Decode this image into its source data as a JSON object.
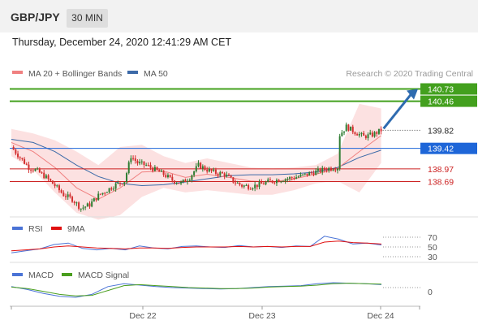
{
  "header": {
    "pair": "GBP/JPY",
    "timeframe": "30 MIN",
    "datetime": "Thursday, December 24, 2020 12:41:29 AM CET"
  },
  "legend": {
    "ma20": "MA 20 + Bollinger Bands",
    "ma50": "MA 50",
    "credit": "Research © 2020 Trading Central",
    "rsi": "RSI",
    "nine_ma": "9MA",
    "macd": "MACD",
    "macd_signal": "MACD Signal"
  },
  "colors": {
    "candle_up": "#2e7d32",
    "candle_down": "#d32f2f",
    "ma20": "#f08080",
    "ma50": "#3c6aa8",
    "bollinger_fill": "#fcdcdc",
    "resistance": "#43a01e",
    "pivot": "#1e66d8",
    "support": "#cc2222",
    "arrow": "#2e6bb0",
    "rsi": "#4a73d6",
    "nine_ma": "#e01010",
    "macd": "#4a73d6",
    "macd_signal": "#4a9e1e"
  },
  "chart_data": [
    {
      "type": "candlestick",
      "timeframe_minutes": 30,
      "x_ticks": [
        "Dec 22",
        "Dec 23",
        "Dec 24"
      ],
      "ylim": [
        138.0,
        140.9
      ],
      "last_price": 139.82,
      "levels": [
        {
          "value": 140.73,
          "kind": "resistance",
          "label": "140.73"
        },
        {
          "value": 140.46,
          "kind": "resistance",
          "label": "140.46"
        },
        {
          "value": 139.42,
          "kind": "pivot",
          "label": "139.42"
        },
        {
          "value": 138.97,
          "kind": "support",
          "label": "138.97"
        },
        {
          "value": 138.69,
          "kind": "support",
          "label": "138.69"
        }
      ],
      "close_path": [
        [
          0,
          139.45
        ],
        [
          4,
          139.22
        ],
        [
          8,
          139.0
        ],
        [
          12,
          138.92
        ],
        [
          16,
          138.78
        ],
        [
          20,
          138.6
        ],
        [
          24,
          138.4
        ],
        [
          28,
          138.3
        ],
        [
          32,
          138.1
        ],
        [
          36,
          138.18
        ],
        [
          40,
          138.38
        ],
        [
          44,
          138.5
        ],
        [
          48,
          138.62
        ],
        [
          52,
          138.7
        ],
        [
          55,
          139.25
        ],
        [
          58,
          139.1
        ],
        [
          62,
          139.05
        ],
        [
          66,
          138.95
        ],
        [
          70,
          138.85
        ],
        [
          74,
          138.72
        ],
        [
          78,
          138.65
        ],
        [
          82,
          138.78
        ],
        [
          86,
          139.05
        ],
        [
          90,
          138.95
        ],
        [
          94,
          138.88
        ],
        [
          98,
          138.85
        ],
        [
          102,
          138.7
        ],
        [
          106,
          138.6
        ],
        [
          110,
          138.58
        ],
        [
          114,
          138.62
        ],
        [
          118,
          138.68
        ],
        [
          122,
          138.72
        ],
        [
          126,
          138.75
        ],
        [
          130,
          138.78
        ],
        [
          134,
          138.82
        ],
        [
          138,
          138.88
        ],
        [
          142,
          138.93
        ],
        [
          146,
          138.98
        ],
        [
          150,
          139.0
        ],
        [
          151,
          139.72
        ],
        [
          154,
          139.9
        ],
        [
          158,
          139.78
        ],
        [
          162,
          139.68
        ],
        [
          166,
          139.72
        ],
        [
          170,
          139.82
        ]
      ],
      "ma20": [
        [
          0,
          139.55
        ],
        [
          10,
          139.35
        ],
        [
          20,
          139.0
        ],
        [
          30,
          138.55
        ],
        [
          40,
          138.3
        ],
        [
          50,
          138.55
        ],
        [
          60,
          138.9
        ],
        [
          70,
          138.92
        ],
        [
          80,
          138.78
        ],
        [
          90,
          138.85
        ],
        [
          100,
          138.78
        ],
        [
          110,
          138.7
        ],
        [
          120,
          138.68
        ],
        [
          130,
          138.75
        ],
        [
          140,
          138.85
        ],
        [
          150,
          138.98
        ],
        [
          160,
          139.35
        ],
        [
          170,
          139.7
        ]
      ],
      "ma50": [
        [
          0,
          139.62
        ],
        [
          10,
          139.55
        ],
        [
          20,
          139.35
        ],
        [
          30,
          139.05
        ],
        [
          40,
          138.8
        ],
        [
          50,
          138.65
        ],
        [
          60,
          138.6
        ],
        [
          70,
          138.62
        ],
        [
          80,
          138.68
        ],
        [
          90,
          138.75
        ],
        [
          100,
          138.82
        ],
        [
          110,
          138.84
        ],
        [
          120,
          138.84
        ],
        [
          130,
          138.86
        ],
        [
          140,
          138.9
        ],
        [
          150,
          139.0
        ],
        [
          160,
          139.22
        ],
        [
          170,
          139.38
        ]
      ],
      "bollinger_upper": [
        [
          0,
          139.85
        ],
        [
          10,
          139.75
        ],
        [
          20,
          139.6
        ],
        [
          30,
          139.35
        ],
        [
          40,
          139.05
        ],
        [
          50,
          139.45
        ],
        [
          60,
          139.5
        ],
        [
          70,
          139.25
        ],
        [
          80,
          139.1
        ],
        [
          90,
          139.2
        ],
        [
          100,
          139.1
        ],
        [
          110,
          139.0
        ],
        [
          120,
          138.98
        ],
        [
          130,
          139.0
        ],
        [
          140,
          139.05
        ],
        [
          150,
          139.3
        ],
        [
          160,
          140.4
        ],
        [
          170,
          140.3
        ]
      ],
      "bollinger_lower": [
        [
          0,
          139.25
        ],
        [
          10,
          138.95
        ],
        [
          20,
          138.45
        ],
        [
          30,
          138.0
        ],
        [
          40,
          137.85
        ],
        [
          50,
          137.95
        ],
        [
          60,
          138.35
        ],
        [
          70,
          138.55
        ],
        [
          80,
          138.45
        ],
        [
          90,
          138.5
        ],
        [
          100,
          138.45
        ],
        [
          110,
          138.4
        ],
        [
          120,
          138.4
        ],
        [
          130,
          138.5
        ],
        [
          140,
          138.65
        ],
        [
          150,
          138.7
        ],
        [
          160,
          138.45
        ],
        [
          170,
          139.1
        ]
      ],
      "projection": {
        "from": [
          170,
          139.82
        ],
        "to": [
          190,
          140.73
        ]
      }
    },
    {
      "type": "line",
      "name": "RSI",
      "yticks": [
        70,
        50,
        30
      ],
      "series": [
        {
          "name": "RSI",
          "values": [
            38,
            42,
            46,
            55,
            58,
            47,
            44,
            47,
            44,
            52,
            48,
            46,
            51,
            52,
            50,
            49,
            53,
            50,
            51,
            49,
            52,
            51,
            72,
            66,
            56,
            58,
            54
          ]
        },
        {
          "name": "9MA",
          "values": [
            42,
            44,
            46,
            50,
            52,
            50,
            48,
            47,
            46,
            48,
            48,
            47,
            49,
            50,
            50,
            50,
            51,
            50,
            51,
            50,
            51,
            51,
            60,
            62,
            59,
            58,
            56
          ]
        }
      ]
    },
    {
      "type": "line",
      "name": "MACD",
      "yticks": [
        0
      ],
      "series": [
        {
          "name": "MACD",
          "values": [
            0.02,
            -0.04,
            -0.12,
            -0.18,
            -0.2,
            -0.14,
            0.02,
            0.08,
            0.05,
            0.02,
            0.0,
            -0.01,
            -0.02,
            -0.03,
            -0.02,
            0.0,
            0.02,
            0.03,
            0.04,
            0.08,
            0.1,
            0.09,
            0.08,
            0.06
          ]
        },
        {
          "name": "MACD Signal",
          "values": [
            0.01,
            -0.02,
            -0.08,
            -0.14,
            -0.17,
            -0.16,
            -0.06,
            0.04,
            0.06,
            0.04,
            0.02,
            0.0,
            -0.01,
            -0.02,
            -0.02,
            -0.01,
            0.01,
            0.02,
            0.03,
            0.05,
            0.08,
            0.09,
            0.08,
            0.07
          ]
        }
      ]
    }
  ]
}
